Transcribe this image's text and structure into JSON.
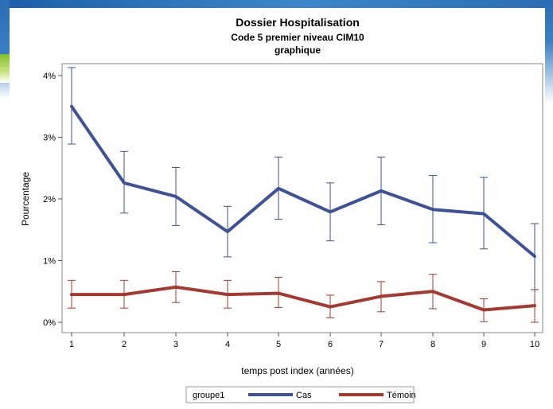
{
  "chart_data": {
    "type": "line",
    "title": "Dossier Hospitalisation",
    "subtitle": "Code 5 premier niveau CIM10",
    "subtitle2": "graphique",
    "xlabel": "temps post index (années)",
    "ylabel": "Pourcentage",
    "x": [
      1,
      2,
      3,
      4,
      5,
      6,
      7,
      8,
      9,
      10
    ],
    "x_tick_labels": [
      "1",
      "2",
      "3",
      "4",
      "5",
      "6",
      "7",
      "8",
      "9",
      "10"
    ],
    "ylim": [
      0,
      4
    ],
    "y_ticks": [
      0,
      1,
      2,
      3,
      4
    ],
    "y_tick_labels": [
      "0%",
      "1%",
      "2%",
      "3%",
      "4%"
    ],
    "grid": false,
    "legend": {
      "title": "groupe1",
      "placement": "bottom"
    },
    "series": [
      {
        "name": "Cas",
        "color": "#3f5298",
        "values": [
          3.5,
          2.26,
          2.04,
          1.47,
          2.17,
          1.79,
          2.13,
          1.83,
          1.76,
          1.07
        ],
        "lower": [
          2.89,
          1.77,
          1.57,
          1.06,
          1.67,
          1.32,
          1.58,
          1.29,
          1.19,
          0.53
        ],
        "upper": [
          4.13,
          2.77,
          2.51,
          1.88,
          2.68,
          2.26,
          2.68,
          2.38,
          2.35,
          1.6
        ]
      },
      {
        "name": "Témoin",
        "color": "#a6382f",
        "values": [
          0.45,
          0.45,
          0.57,
          0.45,
          0.47,
          0.25,
          0.42,
          0.5,
          0.2,
          0.27
        ],
        "lower": [
          0.23,
          0.23,
          0.32,
          0.23,
          0.24,
          0.07,
          0.17,
          0.22,
          0.01,
          0.0
        ],
        "upper": [
          0.68,
          0.68,
          0.82,
          0.68,
          0.73,
          0.44,
          0.66,
          0.78,
          0.38,
          0.53
        ]
      }
    ]
  }
}
